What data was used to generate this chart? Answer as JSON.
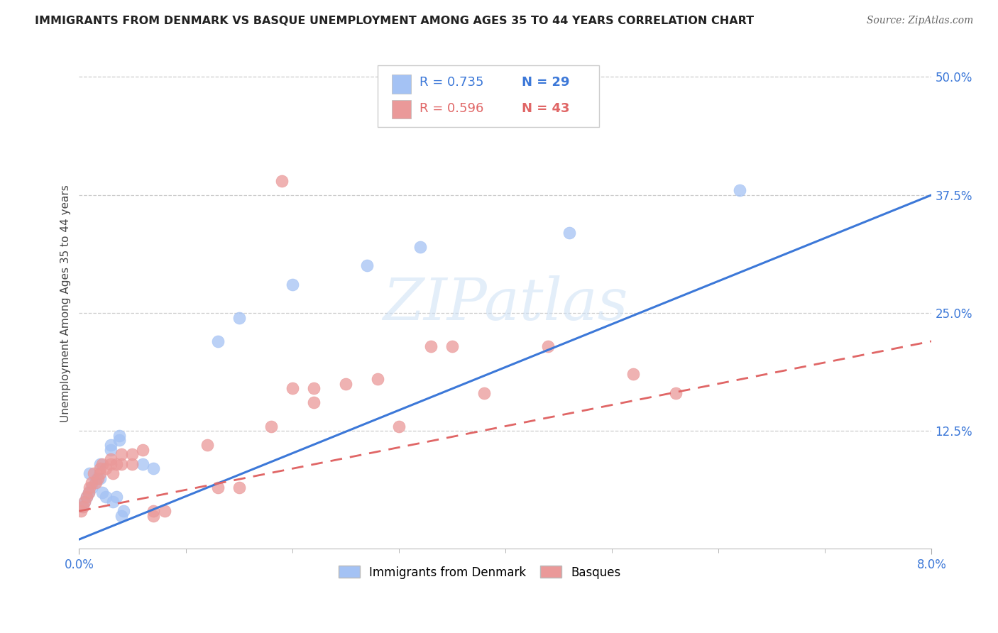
{
  "title": "IMMIGRANTS FROM DENMARK VS BASQUE UNEMPLOYMENT AMONG AGES 35 TO 44 YEARS CORRELATION CHART",
  "source": "Source: ZipAtlas.com",
  "ylabel": "Unemployment Among Ages 35 to 44 years",
  "background_color": "#ffffff",
  "grid_color": "#cccccc",
  "watermark_text": "ZIPatlas",
  "legend_r1": "R = 0.735",
  "legend_n1": "N = 29",
  "legend_r2": "R = 0.596",
  "legend_n2": "N = 43",
  "blue_color": "#a4c2f4",
  "pink_color": "#ea9999",
  "blue_line_color": "#3c78d8",
  "pink_line_color": "#e06666",
  "text_color": "#3c78d8",
  "blue_scatter": [
    [
      0.0003,
      0.045
    ],
    [
      0.0005,
      0.05
    ],
    [
      0.0007,
      0.055
    ],
    [
      0.0009,
      0.06
    ],
    [
      0.001,
      0.08
    ],
    [
      0.0012,
      0.065
    ],
    [
      0.0015,
      0.07
    ],
    [
      0.0017,
      0.075
    ],
    [
      0.002,
      0.075
    ],
    [
      0.002,
      0.09
    ],
    [
      0.0022,
      0.06
    ],
    [
      0.0025,
      0.055
    ],
    [
      0.003,
      0.105
    ],
    [
      0.003,
      0.11
    ],
    [
      0.0032,
      0.05
    ],
    [
      0.0035,
      0.055
    ],
    [
      0.0038,
      0.115
    ],
    [
      0.0038,
      0.12
    ],
    [
      0.004,
      0.035
    ],
    [
      0.0042,
      0.04
    ],
    [
      0.006,
      0.09
    ],
    [
      0.007,
      0.085
    ],
    [
      0.013,
      0.22
    ],
    [
      0.015,
      0.245
    ],
    [
      0.02,
      0.28
    ],
    [
      0.027,
      0.3
    ],
    [
      0.032,
      0.32
    ],
    [
      0.046,
      0.335
    ],
    [
      0.062,
      0.38
    ]
  ],
  "pink_scatter": [
    [
      0.0002,
      0.04
    ],
    [
      0.0004,
      0.045
    ],
    [
      0.0005,
      0.05
    ],
    [
      0.0007,
      0.055
    ],
    [
      0.0009,
      0.06
    ],
    [
      0.001,
      0.065
    ],
    [
      0.0012,
      0.07
    ],
    [
      0.0014,
      0.08
    ],
    [
      0.0016,
      0.07
    ],
    [
      0.0018,
      0.075
    ],
    [
      0.002,
      0.08
    ],
    [
      0.002,
      0.085
    ],
    [
      0.0022,
      0.09
    ],
    [
      0.0025,
      0.085
    ],
    [
      0.003,
      0.09
    ],
    [
      0.003,
      0.095
    ],
    [
      0.0032,
      0.08
    ],
    [
      0.0035,
      0.09
    ],
    [
      0.004,
      0.09
    ],
    [
      0.004,
      0.1
    ],
    [
      0.005,
      0.09
    ],
    [
      0.005,
      0.1
    ],
    [
      0.006,
      0.105
    ],
    [
      0.007,
      0.035
    ],
    [
      0.007,
      0.04
    ],
    [
      0.008,
      0.04
    ],
    [
      0.012,
      0.11
    ],
    [
      0.013,
      0.065
    ],
    [
      0.015,
      0.065
    ],
    [
      0.018,
      0.13
    ],
    [
      0.019,
      0.39
    ],
    [
      0.02,
      0.17
    ],
    [
      0.022,
      0.155
    ],
    [
      0.022,
      0.17
    ],
    [
      0.025,
      0.175
    ],
    [
      0.028,
      0.18
    ],
    [
      0.03,
      0.13
    ],
    [
      0.033,
      0.215
    ],
    [
      0.035,
      0.215
    ],
    [
      0.038,
      0.165
    ],
    [
      0.044,
      0.215
    ],
    [
      0.052,
      0.185
    ],
    [
      0.056,
      0.165
    ]
  ],
  "blue_line_x": [
    0.0,
    0.08
  ],
  "blue_line_y": [
    0.01,
    0.375
  ],
  "pink_line_x": [
    0.0,
    0.08
  ],
  "pink_line_y": [
    0.04,
    0.22
  ],
  "xlim": [
    0.0,
    0.08
  ],
  "ylim": [
    0.0,
    0.52
  ],
  "y_ticks": [
    0.125,
    0.25,
    0.375,
    0.5
  ],
  "y_tick_labels": [
    "12.5%",
    "25.0%",
    "37.5%",
    "50.0%"
  ],
  "x_ticks_major": [
    0.0,
    0.08
  ],
  "x_ticks_minor": [
    0.01,
    0.02,
    0.03,
    0.04,
    0.05,
    0.06,
    0.07
  ],
  "title_fontsize": 11.5,
  "source_fontsize": 10,
  "axis_label_fontsize": 11,
  "tick_fontsize": 12,
  "legend_fontsize": 13
}
